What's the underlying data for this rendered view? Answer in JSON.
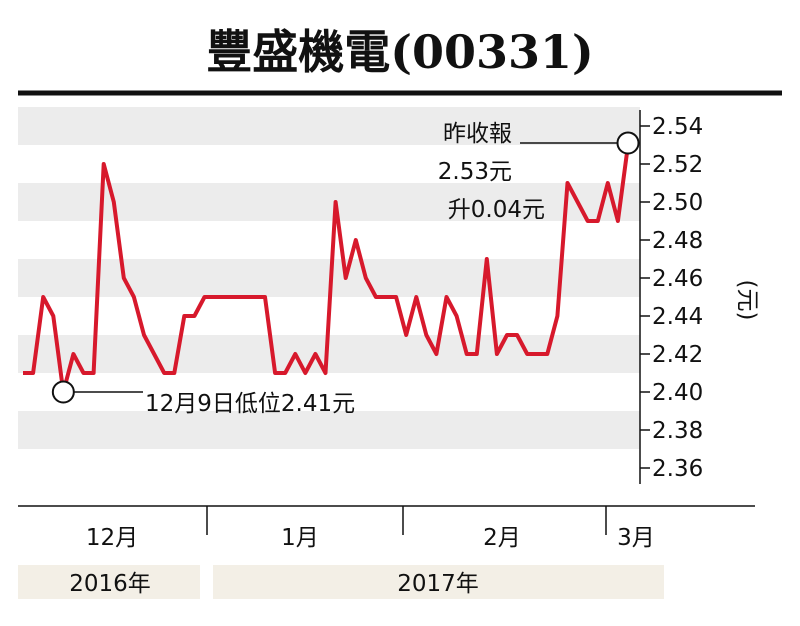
{
  "title": "豐盛機電(00331)",
  "colors": {
    "line": "#d7192c",
    "band": "#ececec",
    "rule": "#111111",
    "text": "#111111",
    "year_band": "#f3efe6"
  },
  "unit_label": "(元)",
  "annotations": {
    "high": [
      "昨收報",
      "2.53元",
      "升0.04元"
    ],
    "low": "12月9日低位2.41元"
  },
  "x_axis": {
    "months": [
      "12月",
      "1月",
      "2月",
      "3月"
    ],
    "years": [
      "2016年",
      "2017年"
    ]
  },
  "chart_data": {
    "type": "line",
    "title": "豐盛機電(00331)",
    "ylabel": "(元)",
    "ylim": [
      2.35,
      2.55
    ],
    "yticks": [
      "2.54",
      "2.52",
      "2.50",
      "2.48",
      "2.46",
      "2.44",
      "2.42",
      "2.40",
      "2.38",
      "2.36"
    ],
    "grid": true,
    "series": [
      {
        "values": [
          2.41,
          2.41,
          2.45,
          2.44,
          2.4,
          2.42,
          2.41,
          2.41,
          2.52,
          2.5,
          2.46,
          2.45,
          2.43,
          2.42,
          2.41,
          2.41,
          2.44,
          2.44,
          2.45,
          2.45,
          2.45,
          2.45,
          2.45,
          2.45,
          2.45,
          2.41,
          2.41,
          2.42,
          2.41,
          2.42,
          2.41,
          2.5,
          2.46,
          2.48,
          2.46,
          2.45,
          2.45,
          2.45,
          2.43,
          2.45,
          2.43,
          2.42,
          2.45,
          2.44,
          2.42,
          2.42,
          2.47,
          2.42,
          2.43,
          2.43,
          2.42,
          2.42,
          2.42,
          2.44,
          2.51,
          2.5,
          2.49,
          2.49,
          2.51,
          2.49,
          2.53
        ]
      }
    ],
    "annotations": [
      "昨收報 2.53元 升0.04元",
      "12月9日低位2.41元"
    ]
  }
}
